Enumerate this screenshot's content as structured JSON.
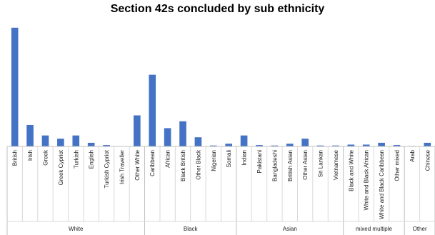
{
  "chart_data": {
    "type": "bar",
    "title": "Section 42s concluded by sub ethnicity",
    "xlabel": "",
    "ylabel": "",
    "ylim": [
      0,
      280
    ],
    "grid": false,
    "legend": "none",
    "bar_color": "#4472C4",
    "categories": [
      "British",
      "Irish",
      "Greek",
      "Greek Cypriot",
      "Turkish",
      "English",
      "Turkish Cypriot",
      "Irish Traveller",
      "Other White",
      "Caribbean",
      "African",
      "Black British",
      "Other Black",
      "Nigerian",
      "Somali",
      "Indian",
      "Pakistani",
      "Bangladeshi",
      "British Asian",
      "Other Asian",
      "Sri Lankan",
      "Vietnamese",
      "Black and White",
      "White and Black African",
      "White and Black Caribbean",
      "Other mixed",
      "Arab",
      "Chinese"
    ],
    "values": [
      260,
      47,
      24,
      17,
      24,
      8,
      3,
      0,
      68,
      157,
      40,
      55,
      20,
      2,
      6,
      24,
      3,
      2,
      6,
      17,
      2,
      2,
      4,
      4,
      8,
      3,
      1,
      8
    ],
    "groups": [
      {
        "name": "White",
        "count": 9
      },
      {
        "name": "Black",
        "count": 6
      },
      {
        "name": "Asian",
        "count": 7
      },
      {
        "name": "mixed multiple",
        "count": 4
      },
      {
        "name": "Other",
        "count": 2
      }
    ]
  }
}
